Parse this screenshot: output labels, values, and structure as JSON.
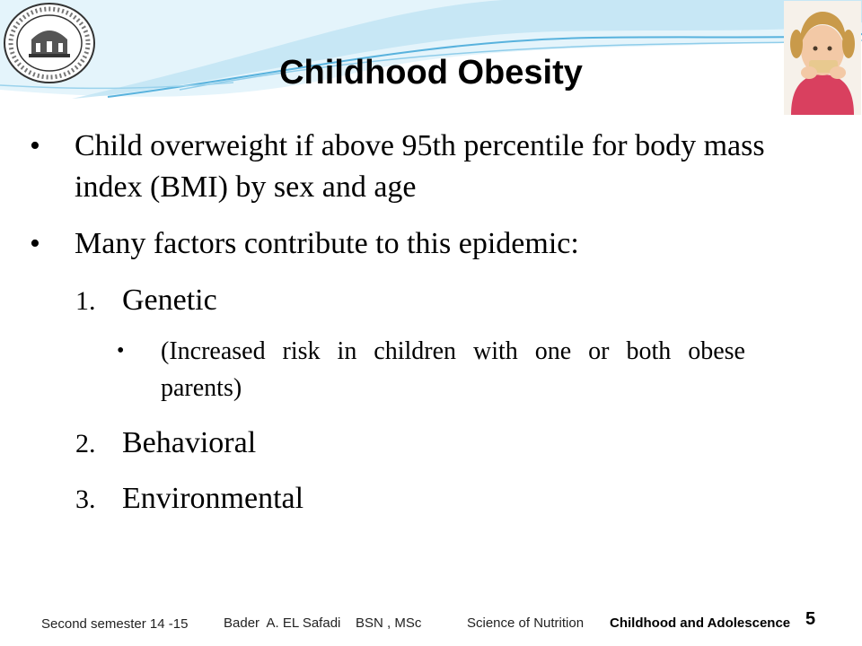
{
  "header": {
    "logo_icon": "university-seal-icon",
    "photo_icon": "child-eating-photo-icon"
  },
  "slide": {
    "title": "Childhood Obesity",
    "bullets": [
      "Child overweight if above 95th percentile for body mass index (BMI) by sex and age",
      "Many factors contribute to this epidemic:"
    ],
    "numbered": [
      {
        "num": "1.",
        "label": "Genetic"
      },
      {
        "num": "2.",
        "label": "Behavioral"
      },
      {
        "num": "3.",
        "label": "Environmental"
      }
    ],
    "sub_bullet": "(Increased risk in children with one or both obese parents)"
  },
  "footer": {
    "semester": "Second semester 14 -15",
    "author": "Bader  A. EL Safadi    BSN , MSc",
    "course": "Science of Nutrition",
    "topic": "Childhood and Adolescence",
    "page": "5"
  },
  "colors": {
    "wave_light": "#d6eef9",
    "wave_mid": "#9fd4ee",
    "wave_dark": "#3f9fd0"
  }
}
